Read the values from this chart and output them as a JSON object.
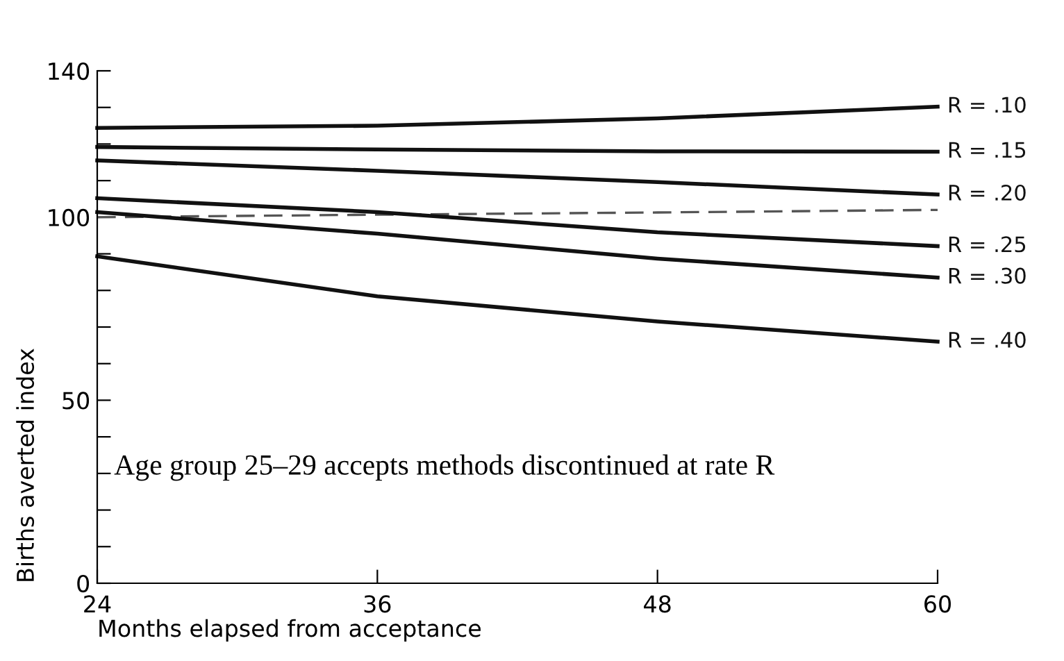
{
  "chart_data": {
    "type": "line",
    "xlabel": "Months elapsed from acceptance",
    "ylabel": "Births averted index",
    "x": [
      24,
      36,
      48,
      60
    ],
    "series": [
      {
        "name": "R = .10",
        "color": "#111111",
        "values": [
          124.4,
          125,
          127,
          130.2
        ]
      },
      {
        "name": "R = .15",
        "color": "#111111",
        "values": [
          119.2,
          118.5,
          118,
          117.9
        ]
      },
      {
        "name": "R = .20",
        "color": "#111111",
        "values": [
          115.5,
          112.7,
          109.6,
          106.2
        ]
      },
      {
        "color": "#555555",
        "line_style": "dashed",
        "values": [
          100,
          100.7,
          101.3,
          102
        ]
      },
      {
        "name": "R = .25",
        "color": "#111111",
        "values": [
          105.2,
          101.4,
          95.9,
          92.1
        ]
      },
      {
        "name": "R = .30",
        "color": "#111111",
        "values": [
          101.4,
          95.5,
          88.7,
          83.5
        ]
      },
      {
        "name": "R = .40",
        "color": "#111111",
        "values": [
          89.3,
          78.4,
          71.5,
          66
        ]
      }
    ],
    "xlim": [
      24,
      60
    ],
    "xticks": [
      24,
      36,
      48,
      60
    ],
    "ylim": [
      0,
      140
    ],
    "yticks": [
      0,
      {
        "value": 10,
        "label": null
      },
      {
        "value": 20,
        "label": null
      },
      {
        "value": 30,
        "label": null
      },
      {
        "value": 40,
        "label": null
      },
      50,
      {
        "value": 60,
        "label": null
      },
      {
        "value": 70,
        "label": null
      },
      {
        "value": 80,
        "label": null
      },
      {
        "value": 90,
        "label": null
      },
      100,
      {
        "value": 110,
        "label": null
      },
      {
        "value": 120,
        "label": null
      },
      {
        "value": 130,
        "label": null
      },
      140
    ],
    "annotations": [
      "Age group 25–29 accepts methods discontinued at rate R"
    ],
    "line_style": "solid",
    "marker": "none",
    "grid": false,
    "legend": false
  }
}
